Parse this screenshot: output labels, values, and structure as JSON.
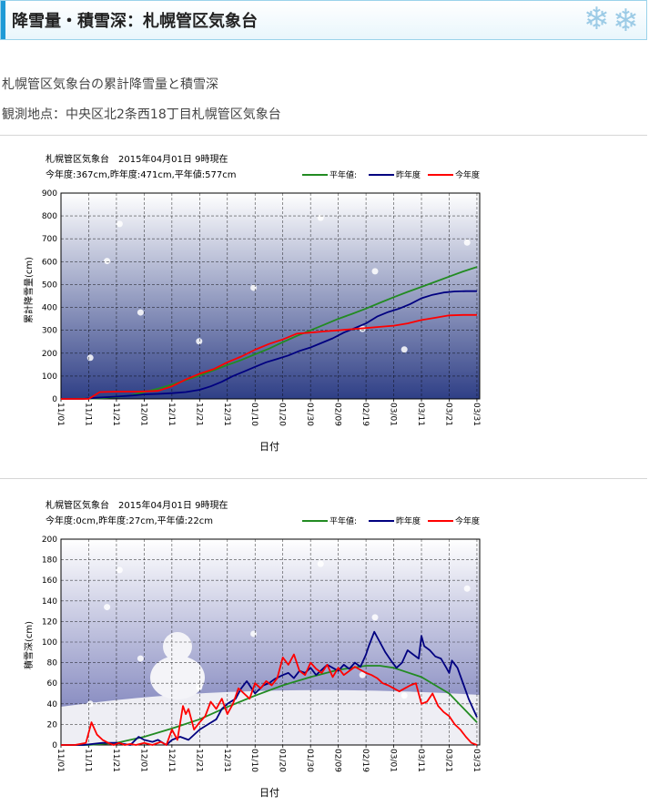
{
  "page": {
    "heading": "降雪量・積雪深：札幌管区気象台",
    "intro": "札幌管区気象台の累計降雪量と積雪深",
    "location": "観測地点：中央区北2条西18丁目札幌管区気象台"
  },
  "colors": {
    "normal": "#228b22",
    "last": "#000080",
    "current": "#ff0000"
  },
  "chart_data": [
    {
      "type": "line",
      "title": "札幌管区気象台　2015年04月01日 9時現在",
      "subtitle": "今年度:367cm,昨年度:471cm,平年値:577cm",
      "xlabel": "日付",
      "ylabel": "累計降雪量(cm)",
      "ylim": [
        0,
        900
      ],
      "yticks": [
        0,
        100,
        200,
        300,
        400,
        500,
        600,
        700,
        800,
        900
      ],
      "xlim": [
        0,
        151
      ],
      "xticks": [
        {
          "d": 0,
          "label": "11/01"
        },
        {
          "d": 10,
          "label": "11/11"
        },
        {
          "d": 20,
          "label": "11/21"
        },
        {
          "d": 30,
          "label": "12/01"
        },
        {
          "d": 40,
          "label": "12/11"
        },
        {
          "d": 50,
          "label": "12/21"
        },
        {
          "d": 60,
          "label": "12/31"
        },
        {
          "d": 70,
          "label": "01/10"
        },
        {
          "d": 80,
          "label": "01/20"
        },
        {
          "d": 90,
          "label": "01/30"
        },
        {
          "d": 100,
          "label": "02/09"
        },
        {
          "d": 110,
          "label": "02/19"
        },
        {
          "d": 120,
          "label": "03/01"
        },
        {
          "d": 130,
          "label": "03/11"
        },
        {
          "d": 140,
          "label": "03/21"
        },
        {
          "d": 150,
          "label": "03/31"
        }
      ],
      "legend": [
        "平年値:",
        "昨年度",
        "今年度"
      ],
      "grid": true,
      "series": [
        {
          "name": "平年値:",
          "color": "normal",
          "x": [
            0,
            10,
            15,
            20,
            25,
            30,
            35,
            40,
            45,
            50,
            55,
            60,
            65,
            70,
            75,
            80,
            85,
            90,
            95,
            100,
            105,
            110,
            115,
            120,
            125,
            130,
            135,
            140,
            145,
            150
          ],
          "y": [
            0,
            1,
            3,
            8,
            15,
            30,
            45,
            62,
            82,
            102,
            125,
            148,
            170,
            195,
            220,
            248,
            275,
            300,
            325,
            350,
            372,
            395,
            420,
            445,
            468,
            490,
            512,
            535,
            557,
            577
          ]
        },
        {
          "name": "昨年度",
          "color": "last",
          "x": [
            0,
            8,
            13,
            20,
            26,
            30,
            35,
            40,
            45,
            50,
            54,
            58,
            62,
            66,
            70,
            74,
            78,
            82,
            86,
            90,
            94,
            98,
            102,
            106,
            110,
            114,
            118,
            122,
            126,
            130,
            134,
            138,
            142,
            146,
            150
          ],
          "y": [
            0,
            0,
            5,
            10,
            15,
            20,
            22,
            25,
            30,
            40,
            55,
            75,
            100,
            120,
            140,
            160,
            175,
            190,
            210,
            225,
            245,
            265,
            290,
            310,
            330,
            360,
            380,
            395,
            415,
            440,
            455,
            465,
            470,
            471,
            471
          ]
        },
        {
          "name": "今年度",
          "color": "current",
          "x": [
            0,
            10,
            14,
            20,
            28,
            35,
            40,
            45,
            50,
            55,
            60,
            65,
            70,
            75,
            80,
            85,
            90,
            95,
            100,
            105,
            110,
            115,
            120,
            125,
            130,
            135,
            140,
            145,
            150
          ],
          "y": [
            0,
            0,
            30,
            32,
            32,
            35,
            55,
            85,
            110,
            130,
            160,
            185,
            215,
            240,
            260,
            285,
            290,
            295,
            300,
            305,
            310,
            315,
            320,
            330,
            345,
            355,
            365,
            367,
            367
          ]
        }
      ]
    },
    {
      "type": "line",
      "title": "札幌管区気象台　2015年04月01日 9時現在",
      "subtitle": "今年度:0cm,昨年度:27cm,平年値:22cm",
      "xlabel": "日付",
      "ylabel": "積雪深(cm)",
      "ylim": [
        0,
        200
      ],
      "yticks": [
        0,
        20,
        40,
        60,
        80,
        100,
        120,
        140,
        160,
        180,
        200
      ],
      "xlim": [
        0,
        151
      ],
      "xticks": [
        {
          "d": 0,
          "label": "11/01"
        },
        {
          "d": 10,
          "label": "11/11"
        },
        {
          "d": 20,
          "label": "11/21"
        },
        {
          "d": 30,
          "label": "12/01"
        },
        {
          "d": 40,
          "label": "12/11"
        },
        {
          "d": 50,
          "label": "12/21"
        },
        {
          "d": 60,
          "label": "12/31"
        },
        {
          "d": 70,
          "label": "01/10"
        },
        {
          "d": 80,
          "label": "01/20"
        },
        {
          "d": 90,
          "label": "01/30"
        },
        {
          "d": 100,
          "label": "02/09"
        },
        {
          "d": 110,
          "label": "02/19"
        },
        {
          "d": 120,
          "label": "03/01"
        },
        {
          "d": 130,
          "label": "03/11"
        },
        {
          "d": 140,
          "label": "03/21"
        },
        {
          "d": 150,
          "label": "03/31"
        }
      ],
      "legend": [
        "平年値:",
        "昨年度",
        "今年度"
      ],
      "grid": true,
      "series": [
        {
          "name": "平年値:",
          "color": "normal",
          "x": [
            0,
            10,
            20,
            30,
            40,
            50,
            60,
            70,
            80,
            90,
            100,
            110,
            115,
            120,
            130,
            140,
            145,
            150
          ],
          "y": [
            0,
            0,
            2,
            8,
            16,
            25,
            37,
            48,
            58,
            66,
            73,
            77,
            77,
            75,
            66,
            50,
            36,
            22
          ]
        },
        {
          "name": "昨年度",
          "color": "last",
          "x": [
            0,
            8,
            15,
            20,
            25,
            28,
            30,
            33,
            35,
            38,
            40,
            43,
            46,
            50,
            53,
            56,
            58,
            60,
            63,
            65,
            67,
            70,
            73,
            75,
            77,
            80,
            82,
            84,
            86,
            88,
            90,
            92,
            94,
            96,
            98,
            100,
            102,
            104,
            106,
            108,
            110,
            111,
            113,
            115,
            117,
            119,
            121,
            123,
            125,
            127,
            129,
            130,
            131,
            133,
            135,
            137,
            139,
            140,
            141,
            143,
            145,
            147,
            149,
            150
          ],
          "y": [
            0,
            0,
            2,
            2,
            0,
            8,
            5,
            3,
            5,
            0,
            5,
            8,
            5,
            15,
            20,
            25,
            35,
            40,
            45,
            55,
            62,
            50,
            58,
            60,
            64,
            68,
            70,
            65,
            72,
            70,
            75,
            68,
            73,
            78,
            75,
            72,
            78,
            74,
            80,
            76,
            88,
            96,
            110,
            100,
            90,
            82,
            75,
            80,
            92,
            88,
            84,
            106,
            96,
            92,
            86,
            84,
            75,
            70,
            82,
            75,
            60,
            45,
            33,
            27
          ]
        },
        {
          "name": "今年度",
          "color": "current",
          "x": [
            0,
            5,
            9,
            11,
            13,
            15,
            17,
            19,
            21,
            23,
            25,
            27,
            30,
            33,
            36,
            38,
            40,
            42,
            44,
            45,
            46,
            48,
            50,
            52,
            54,
            56,
            58,
            60,
            62,
            64,
            66,
            68,
            70,
            72,
            74,
            76,
            78,
            80,
            82,
            84,
            86,
            88,
            90,
            92,
            94,
            96,
            98,
            100,
            102,
            104,
            106,
            108,
            110,
            112,
            114,
            116,
            118,
            120,
            122,
            124,
            126,
            128,
            130,
            132,
            134,
            136,
            138,
            140,
            142,
            144,
            146,
            148,
            150
          ],
          "y": [
            0,
            0,
            2,
            22,
            10,
            5,
            2,
            0,
            2,
            0,
            1,
            0,
            2,
            0,
            3,
            0,
            15,
            5,
            38,
            30,
            35,
            15,
            22,
            28,
            42,
            35,
            45,
            30,
            40,
            55,
            50,
            45,
            60,
            55,
            62,
            58,
            65,
            85,
            78,
            88,
            72,
            68,
            80,
            74,
            70,
            78,
            66,
            75,
            68,
            72,
            76,
            73,
            70,
            68,
            65,
            60,
            58,
            55,
            52,
            55,
            58,
            60,
            40,
            42,
            50,
            38,
            32,
            28,
            20,
            15,
            8,
            2,
            0
          ]
        }
      ]
    }
  ]
}
